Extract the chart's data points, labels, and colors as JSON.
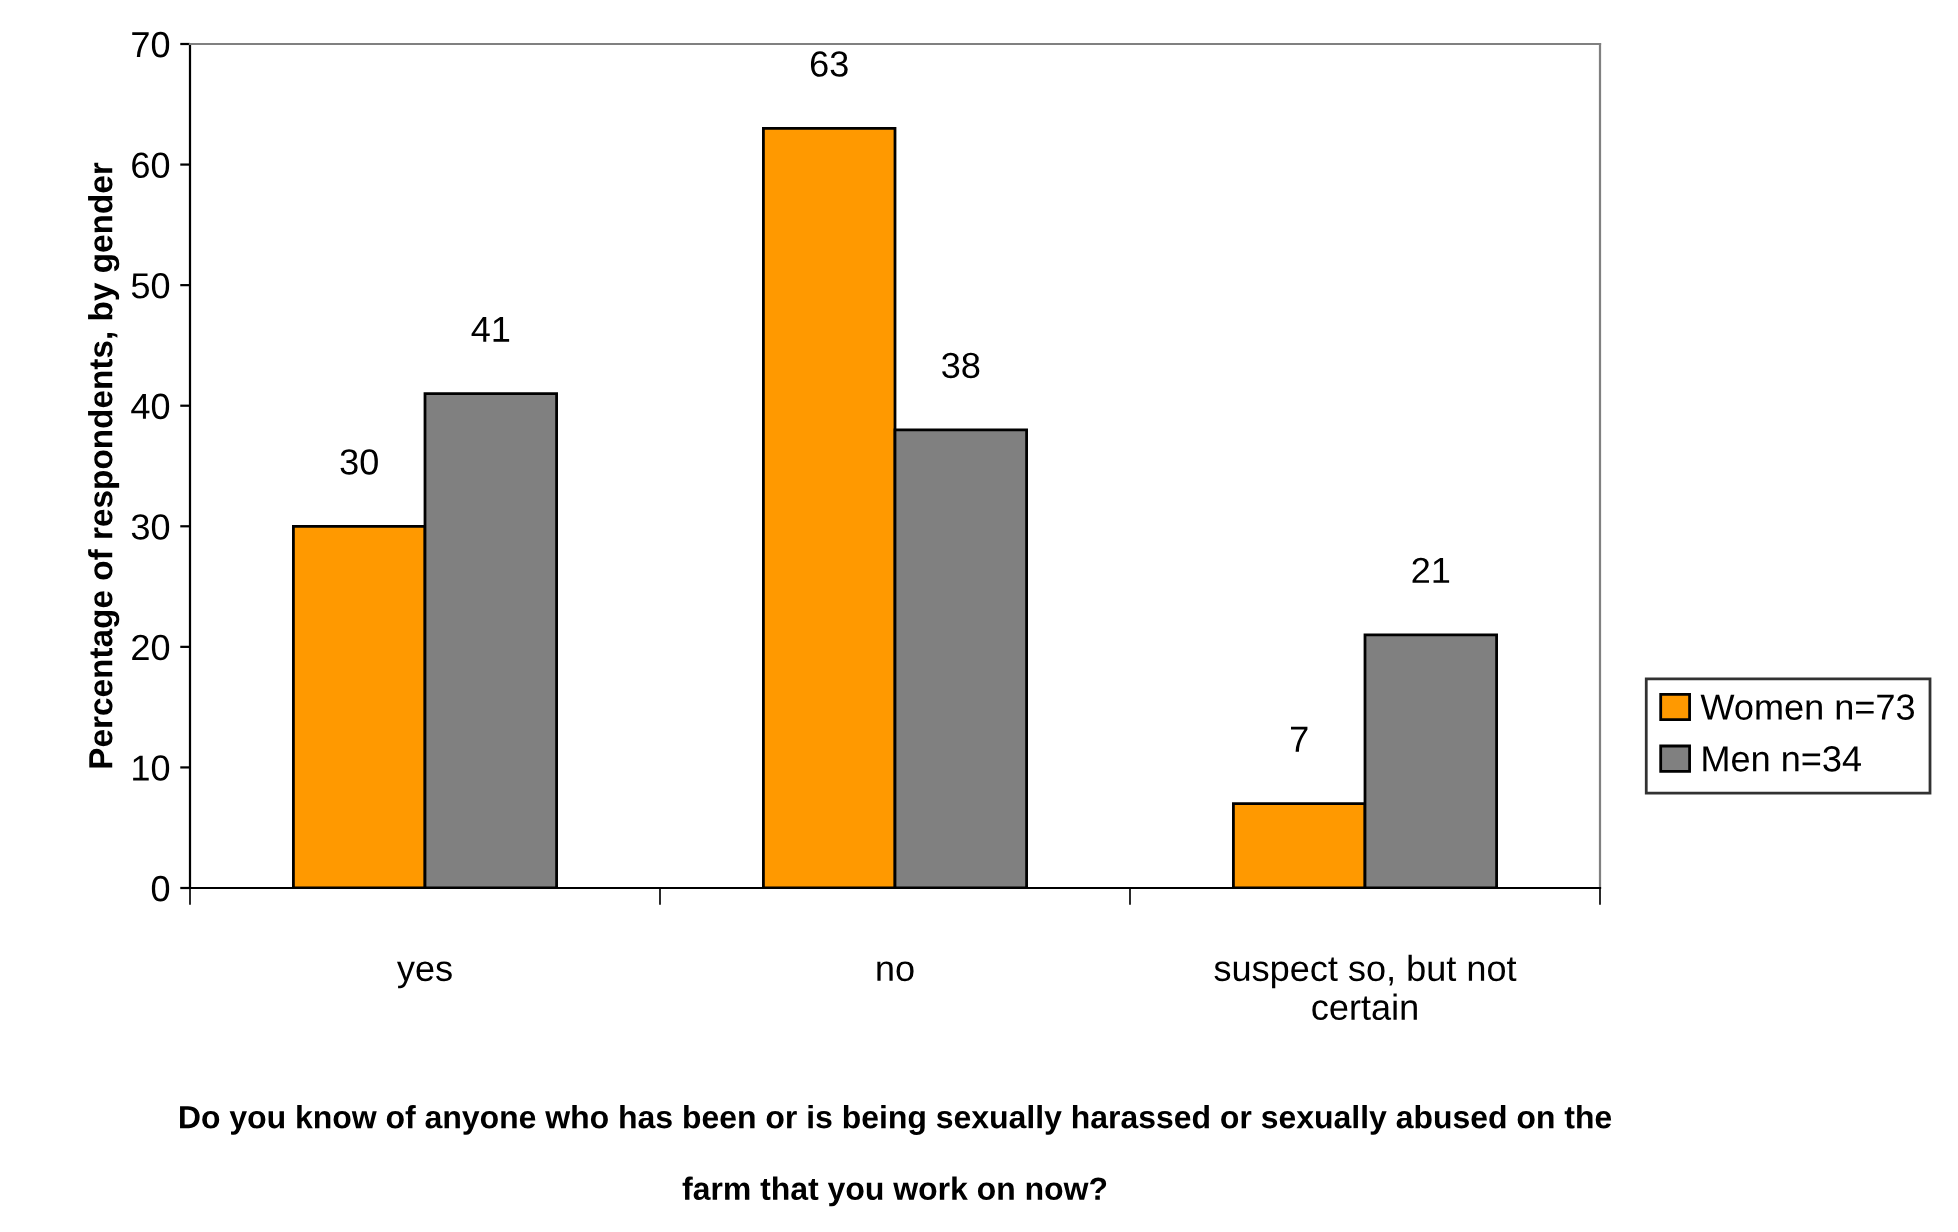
{
  "chart_data": {
    "type": "bar",
    "xlabel": "Do you know of anyone who has been or is being sexually harassed or sexually abused on the\nfarm that you work on now?",
    "ylabel": "Percentage of respondents, by gender",
    "categories": [
      "yes",
      "no",
      "suspect so, but not\ncertain"
    ],
    "series": [
      {
        "name": "Women n=73",
        "color": "#ff9900",
        "values": [
          30,
          63,
          7
        ]
      },
      {
        "name": "Men n=34",
        "color": "#808080",
        "values": [
          41,
          38,
          21
        ]
      }
    ],
    "ylim": [
      0,
      70
    ],
    "yticks": [
      0,
      10,
      20,
      30,
      40,
      50,
      60,
      70
    ],
    "data_labels": true,
    "legend": "right",
    "grid": false
  }
}
